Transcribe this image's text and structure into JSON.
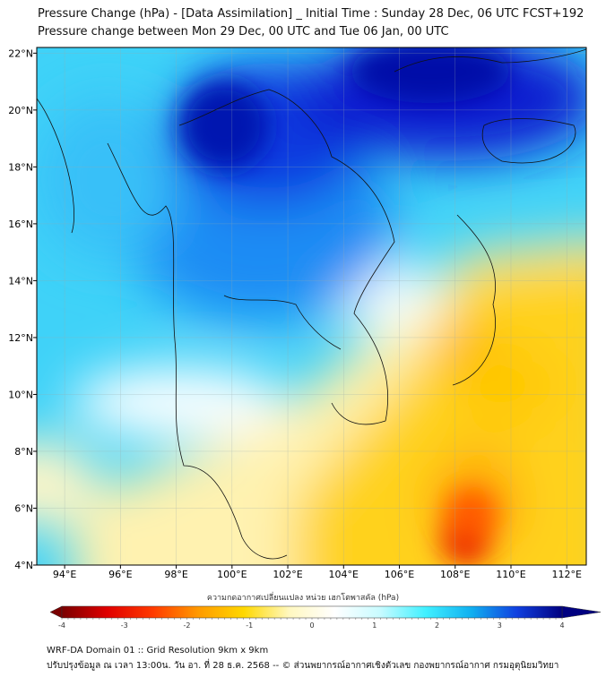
{
  "title": {
    "line1": "Pressure Change (hPa) - [Data Assimilation] _ Initial Time : Sunday 28 Dec, 06 UTC FCST+192",
    "line2": "Pressure change between Mon 29 Dec, 00 UTC and Tue 06 Jan, 00 UTC"
  },
  "map": {
    "lat_labels": [
      "22°N",
      "20°N",
      "18°N",
      "16°N",
      "14°N",
      "12°N",
      "10°N",
      "8°N",
      "6°N",
      "4°N"
    ],
    "lat_values": [
      22,
      20,
      18,
      16,
      14,
      12,
      10,
      8,
      6,
      4
    ],
    "lon_labels": [
      "94°E",
      "96°E",
      "98°E",
      "100°E",
      "102°E",
      "104°E",
      "106°E",
      "108°E",
      "110°E",
      "112°E"
    ],
    "lon_values": [
      94,
      96,
      98,
      100,
      102,
      104,
      106,
      108,
      110,
      112
    ],
    "lon_range": [
      93.0,
      112.7
    ],
    "lat_range": [
      4.0,
      22.2
    ]
  },
  "colorbar": {
    "label": "ความกดอากาศเปลี่ยนแปลง หน่วย เฮกโตพาสคัล (hPa)",
    "ticks": [
      "-4",
      "-3",
      "-2",
      "-1",
      "0",
      "1",
      "2",
      "3",
      "4"
    ],
    "range": [
      -4,
      4
    ],
    "colors": [
      "#7a0000",
      "#e00000",
      "#ff3a00",
      "#ff9a00",
      "#ffd800",
      "#fff8c0",
      "#ffffff",
      "#c8fbff",
      "#40f0ff",
      "#10b0f0",
      "#1040e0",
      "#000080"
    ]
  },
  "footer": {
    "line1": "WRF-DA Domain 01 :: Grid Resolution 9km x 9km",
    "line2": "ปรับปรุงข้อมูล ณ เวลา 13:00น. วัน อา. ที่ 28 ธ.ค. 2568 -- © ส่วนพยากรณ์อากาศเชิงตัวเลข กองพยากรณ์อากาศ กรมอุตุนิยมวิทยา"
  }
}
